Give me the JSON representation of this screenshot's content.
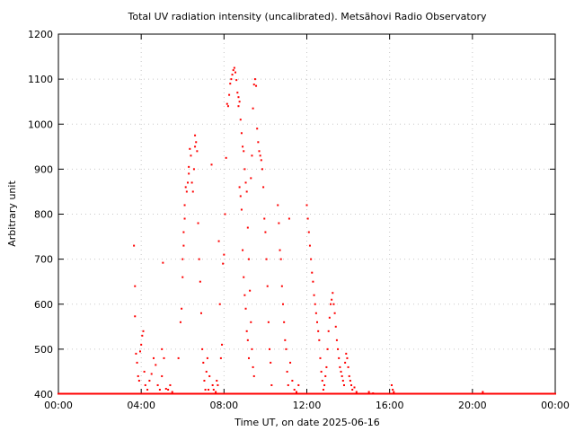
{
  "chart_data": {
    "type": "scatter",
    "title": "Total UV radiation intensity (uncalibrated). Metsähovi Radio Observatory",
    "xlabel": "Time UT, on date 2025-06-16",
    "ylabel": "Arbitrary unit",
    "xlim": [
      0,
      24
    ],
    "ylim": [
      400,
      1200
    ],
    "x_ticks": [
      {
        "v": 0,
        "label": "00:00"
      },
      {
        "v": 4,
        "label": "04:00"
      },
      {
        "v": 8,
        "label": "08:00"
      },
      {
        "v": 12,
        "label": "12:00"
      },
      {
        "v": 16,
        "label": "16:00"
      },
      {
        "v": 20,
        "label": "20:00"
      },
      {
        "v": 24,
        "label": "00:00"
      }
    ],
    "y_ticks": [
      {
        "v": 400,
        "label": "400"
      },
      {
        "v": 500,
        "label": "500"
      },
      {
        "v": 600,
        "label": "600"
      },
      {
        "v": 700,
        "label": "700"
      },
      {
        "v": 800,
        "label": "800"
      },
      {
        "v": 900,
        "label": "900"
      },
      {
        "v": 1000,
        "label": "1000"
      },
      {
        "v": 1100,
        "label": "1100"
      },
      {
        "v": 1200,
        "label": "1200"
      }
    ],
    "grid": true,
    "marker_color": "#ff0000",
    "series": [
      {
        "x_unit": "hours UT",
        "baseline_value": 400,
        "points": [
          [
            3.65,
            730
          ],
          [
            3.7,
            640
          ],
          [
            3.7,
            573
          ],
          [
            3.75,
            490
          ],
          [
            3.8,
            470
          ],
          [
            3.85,
            440
          ],
          [
            3.9,
            430
          ],
          [
            3.95,
            495
          ],
          [
            4.0,
            510
          ],
          [
            4.05,
            530
          ],
          [
            4.1,
            540
          ],
          [
            4.15,
            450
          ],
          [
            4.2,
            420
          ],
          [
            4.3,
            410
          ],
          [
            4.4,
            430
          ],
          [
            4.5,
            445
          ],
          [
            4.6,
            480
          ],
          [
            4.7,
            465
          ],
          [
            4.8,
            420
          ],
          [
            4.9,
            410
          ],
          [
            5.0,
            440
          ],
          [
            5.0,
            500
          ],
          [
            5.05,
            692
          ],
          [
            5.1,
            480
          ],
          [
            5.2,
            412
          ],
          [
            5.3,
            410
          ],
          [
            5.4,
            420
          ],
          [
            5.5,
            405
          ],
          [
            5.8,
            480
          ],
          [
            5.9,
            560
          ],
          [
            5.95,
            590
          ],
          [
            6.0,
            660
          ],
          [
            6.0,
            700
          ],
          [
            6.05,
            730
          ],
          [
            6.05,
            760
          ],
          [
            6.1,
            790
          ],
          [
            6.1,
            820
          ],
          [
            6.15,
            860
          ],
          [
            6.2,
            850
          ],
          [
            6.25,
            870
          ],
          [
            6.3,
            890
          ],
          [
            6.3,
            905
          ],
          [
            6.35,
            945
          ],
          [
            6.4,
            930
          ],
          [
            6.45,
            870
          ],
          [
            6.5,
            850
          ],
          [
            6.55,
            900
          ],
          [
            6.6,
            950
          ],
          [
            6.6,
            975
          ],
          [
            6.65,
            960
          ],
          [
            6.7,
            940
          ],
          [
            6.75,
            780
          ],
          [
            6.8,
            700
          ],
          [
            6.85,
            650
          ],
          [
            6.9,
            580
          ],
          [
            6.95,
            500
          ],
          [
            7.0,
            470
          ],
          [
            7.05,
            430
          ],
          [
            7.1,
            410
          ],
          [
            7.15,
            450
          ],
          [
            7.2,
            480
          ],
          [
            7.25,
            410
          ],
          [
            7.3,
            440
          ],
          [
            7.4,
            910
          ],
          [
            7.45,
            420
          ],
          [
            7.5,
            410
          ],
          [
            7.6,
            405
          ],
          [
            7.65,
            430
          ],
          [
            7.7,
            420
          ],
          [
            7.75,
            740
          ],
          [
            7.8,
            600
          ],
          [
            7.85,
            480
          ],
          [
            7.9,
            510
          ],
          [
            7.95,
            690
          ],
          [
            8.0,
            710
          ],
          [
            8.05,
            800
          ],
          [
            8.1,
            925
          ],
          [
            8.15,
            1045
          ],
          [
            8.2,
            1040
          ],
          [
            8.25,
            1065
          ],
          [
            8.3,
            1090
          ],
          [
            8.35,
            1100
          ],
          [
            8.4,
            1110
          ],
          [
            8.45,
            1120
          ],
          [
            8.5,
            1125
          ],
          [
            8.55,
            1115
          ],
          [
            8.6,
            1098
          ],
          [
            8.65,
            1070
          ],
          [
            8.7,
            1060
          ],
          [
            8.75,
            1050
          ],
          [
            8.8,
            1010
          ],
          [
            8.85,
            980
          ],
          [
            8.9,
            950
          ],
          [
            8.95,
            940
          ],
          [
            9.0,
            900
          ],
          [
            9.05,
            870
          ],
          [
            9.1,
            850
          ],
          [
            9.15,
            770
          ],
          [
            9.2,
            700
          ],
          [
            9.25,
            630
          ],
          [
            9.3,
            560
          ],
          [
            9.35,
            500
          ],
          [
            9.4,
            460
          ],
          [
            9.45,
            440
          ],
          [
            8.7,
            1040
          ],
          [
            8.75,
            860
          ],
          [
            8.8,
            840
          ],
          [
            8.85,
            810
          ],
          [
            8.9,
            720
          ],
          [
            8.95,
            660
          ],
          [
            9.0,
            620
          ],
          [
            9.05,
            590
          ],
          [
            9.1,
            540
          ],
          [
            9.15,
            520
          ],
          [
            9.2,
            480
          ],
          [
            9.3,
            880
          ],
          [
            9.35,
            930
          ],
          [
            9.4,
            1035
          ],
          [
            9.45,
            1088
          ],
          [
            9.5,
            1100
          ],
          [
            9.55,
            1085
          ],
          [
            9.6,
            990
          ],
          [
            9.65,
            960
          ],
          [
            9.7,
            940
          ],
          [
            9.75,
            930
          ],
          [
            9.8,
            920
          ],
          [
            9.85,
            900
          ],
          [
            9.9,
            860
          ],
          [
            9.95,
            790
          ],
          [
            10.0,
            760
          ],
          [
            10.05,
            700
          ],
          [
            10.1,
            640
          ],
          [
            10.15,
            560
          ],
          [
            10.2,
            500
          ],
          [
            10.25,
            470
          ],
          [
            10.3,
            420
          ],
          [
            10.6,
            820
          ],
          [
            10.65,
            780
          ],
          [
            10.7,
            720
          ],
          [
            10.75,
            700
          ],
          [
            10.8,
            640
          ],
          [
            10.85,
            600
          ],
          [
            10.9,
            560
          ],
          [
            10.95,
            520
          ],
          [
            11.0,
            500
          ],
          [
            11.05,
            450
          ],
          [
            11.1,
            420
          ],
          [
            11.15,
            790
          ],
          [
            11.2,
            470
          ],
          [
            11.3,
            430
          ],
          [
            11.4,
            410
          ],
          [
            11.5,
            405
          ],
          [
            11.6,
            420
          ],
          [
            12.0,
            820
          ],
          [
            12.05,
            790
          ],
          [
            12.1,
            760
          ],
          [
            12.15,
            730
          ],
          [
            12.2,
            700
          ],
          [
            12.25,
            670
          ],
          [
            12.3,
            650
          ],
          [
            12.35,
            620
          ],
          [
            12.4,
            600
          ],
          [
            12.45,
            580
          ],
          [
            12.5,
            560
          ],
          [
            12.55,
            540
          ],
          [
            12.6,
            520
          ],
          [
            12.65,
            480
          ],
          [
            12.7,
            450
          ],
          [
            12.75,
            430
          ],
          [
            12.8,
            410
          ],
          [
            12.85,
            420
          ],
          [
            12.9,
            440
          ],
          [
            12.95,
            460
          ],
          [
            13.0,
            500
          ],
          [
            13.05,
            540
          ],
          [
            13.1,
            570
          ],
          [
            13.15,
            600
          ],
          [
            13.2,
            610
          ],
          [
            13.25,
            625
          ],
          [
            13.3,
            600
          ],
          [
            13.35,
            580
          ],
          [
            13.4,
            550
          ],
          [
            13.45,
            520
          ],
          [
            13.5,
            500
          ],
          [
            13.55,
            480
          ],
          [
            13.6,
            460
          ],
          [
            13.65,
            450
          ],
          [
            13.7,
            440
          ],
          [
            13.75,
            430
          ],
          [
            13.8,
            420
          ],
          [
            13.85,
            470
          ],
          [
            13.9,
            490
          ],
          [
            13.95,
            480
          ],
          [
            14.0,
            460
          ],
          [
            14.05,
            440
          ],
          [
            14.1,
            430
          ],
          [
            14.15,
            420
          ],
          [
            14.2,
            410
          ],
          [
            14.3,
            415
          ],
          [
            14.4,
            405
          ],
          [
            15.0,
            405
          ],
          [
            15.2,
            402
          ],
          [
            16.1,
            420
          ],
          [
            16.15,
            410
          ],
          [
            16.2,
            405
          ],
          [
            20.5,
            405
          ]
        ]
      }
    ]
  }
}
